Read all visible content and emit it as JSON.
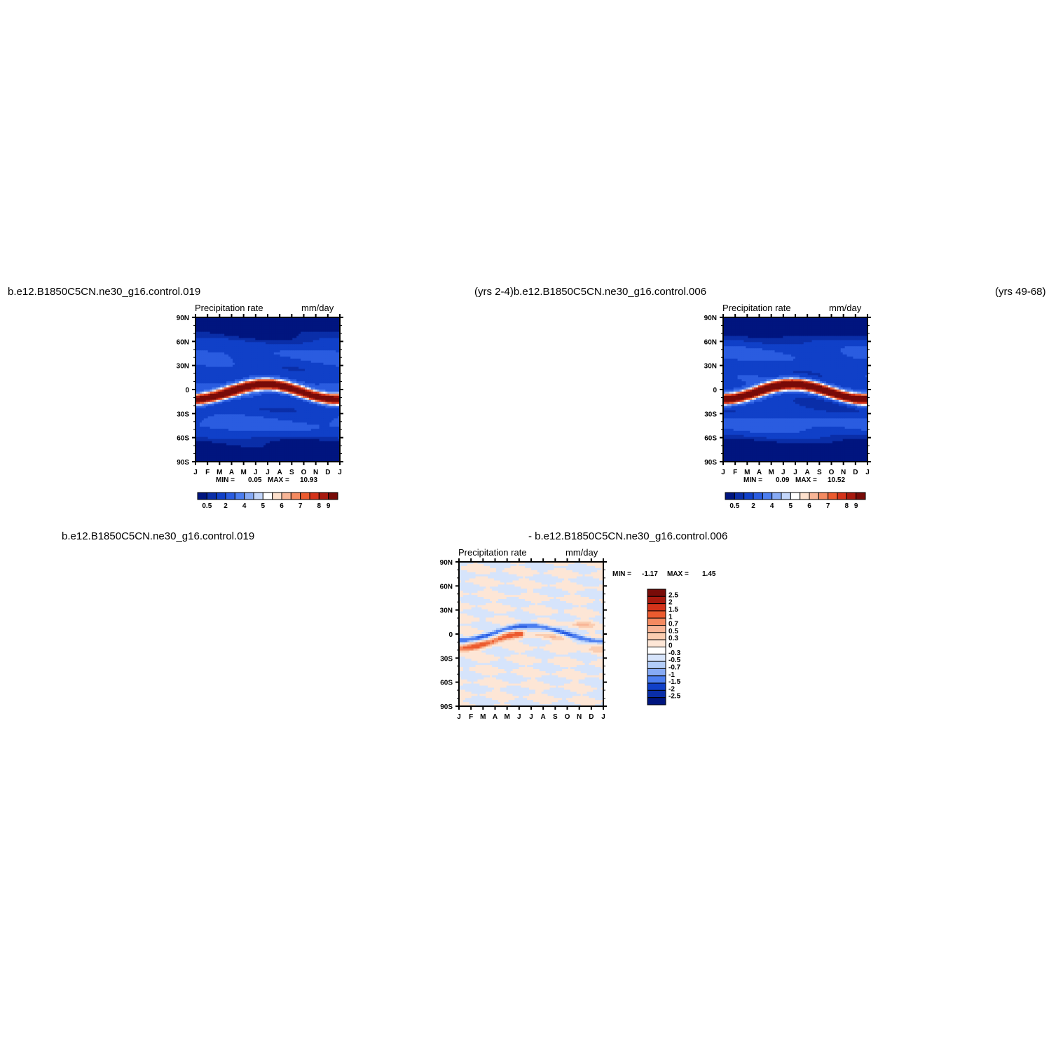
{
  "page": {
    "titles": {
      "top_left": "b.e12.B1850C5CN.ne30_g16.control.019",
      "top_middle": "(yrs 2-4)b.e12.B1850C5CN.ne30_g16.control.006",
      "top_right": "(yrs 49-68)",
      "bottom_left": "b.e12.B1850C5CN.ne30_g16.control.019",
      "bottom_middle": "- b.e12.B1850C5CN.ne30_g16.control.006"
    }
  },
  "chart_data": [
    {
      "type": "heatmap",
      "variable": "Precipitation rate",
      "units": "mm/day",
      "x_tick_labels": [
        "J",
        "F",
        "M",
        "A",
        "M",
        "J",
        "J",
        "A",
        "S",
        "O",
        "N",
        "D",
        "J"
      ],
      "y_tick_labels": [
        "90N",
        "60N",
        "30N",
        "0",
        "30S",
        "60S",
        "90S"
      ],
      "ylim": [
        -90,
        90
      ],
      "min_label": "MIN =",
      "min_value": "0.05",
      "max_label": "MAX =",
      "max_value": "10.93",
      "colorbar_orientation": "horizontal",
      "colorbar_labels": [
        "0.5",
        "2",
        "4",
        "5",
        "6",
        "7",
        "8",
        "9"
      ],
      "colorbar_colors": [
        "#00157f",
        "#0a2ea8",
        "#1040c8",
        "#2a5ce0",
        "#4c7ef0",
        "#86aaf5",
        "#c3d6fa",
        "#ffffff",
        "#fde0cc",
        "#f8b596",
        "#f48a60",
        "#ec5b2f",
        "#d4331a",
        "#a8190e",
        "#780b08"
      ],
      "pattern": "ITCZ: rain belt near 5-10S in Jan-Apr, migrating to 10N in Jun-Oct; dry polar regions"
    },
    {
      "type": "heatmap",
      "variable": "Precipitation rate",
      "units": "mm/day",
      "x_tick_labels": [
        "J",
        "F",
        "M",
        "A",
        "M",
        "J",
        "J",
        "A",
        "S",
        "O",
        "N",
        "D",
        "J"
      ],
      "y_tick_labels": [
        "90N",
        "60N",
        "30N",
        "0",
        "30S",
        "60S",
        "90S"
      ],
      "ylim": [
        -90,
        90
      ],
      "min_label": "MIN =",
      "min_value": "0.09",
      "max_label": "MAX =",
      "max_value": "10.52",
      "colorbar_orientation": "horizontal",
      "colorbar_labels": [
        "0.5",
        "2",
        "4",
        "5",
        "6",
        "7",
        "8",
        "9"
      ],
      "colorbar_colors": [
        "#00157f",
        "#0a2ea8",
        "#1040c8",
        "#2a5ce0",
        "#4c7ef0",
        "#86aaf5",
        "#c3d6fa",
        "#ffffff",
        "#fde0cc",
        "#f8b596",
        "#f48a60",
        "#ec5b2f",
        "#d4331a",
        "#a8190e",
        "#780b08"
      ]
    },
    {
      "type": "heatmap",
      "variable": "Precipitation rate",
      "units": "mm/day",
      "x_tick_labels": [
        "J",
        "F",
        "M",
        "A",
        "M",
        "J",
        "J",
        "A",
        "S",
        "O",
        "N",
        "D",
        "J"
      ],
      "y_tick_labels": [
        "90N",
        "60N",
        "30N",
        "0",
        "30S",
        "60S",
        "90S"
      ],
      "ylim": [
        -90,
        90
      ],
      "min_label": "MIN =",
      "min_value": "-1.17",
      "max_label": "MAX =",
      "max_value": "1.45",
      "colorbar_orientation": "vertical",
      "colorbar_labels": [
        "2.5",
        "2",
        "1.5",
        "1",
        "0.7",
        "0.5",
        "0.3",
        "0",
        "-0.3",
        "-0.5",
        "-0.7",
        "-1",
        "-1.5",
        "-2",
        "-2.5"
      ],
      "colorbar_colors": [
        "#780b08",
        "#a8190e",
        "#d4331a",
        "#ec5b2f",
        "#f48a60",
        "#f8b596",
        "#fbcdb0",
        "#fde6d6",
        "#ffffff",
        "#d6e4fb",
        "#b3cdf8",
        "#86aaf5",
        "#4c7ef0",
        "#1040c8",
        "#0a2ea8",
        "#00157f"
      ]
    }
  ]
}
